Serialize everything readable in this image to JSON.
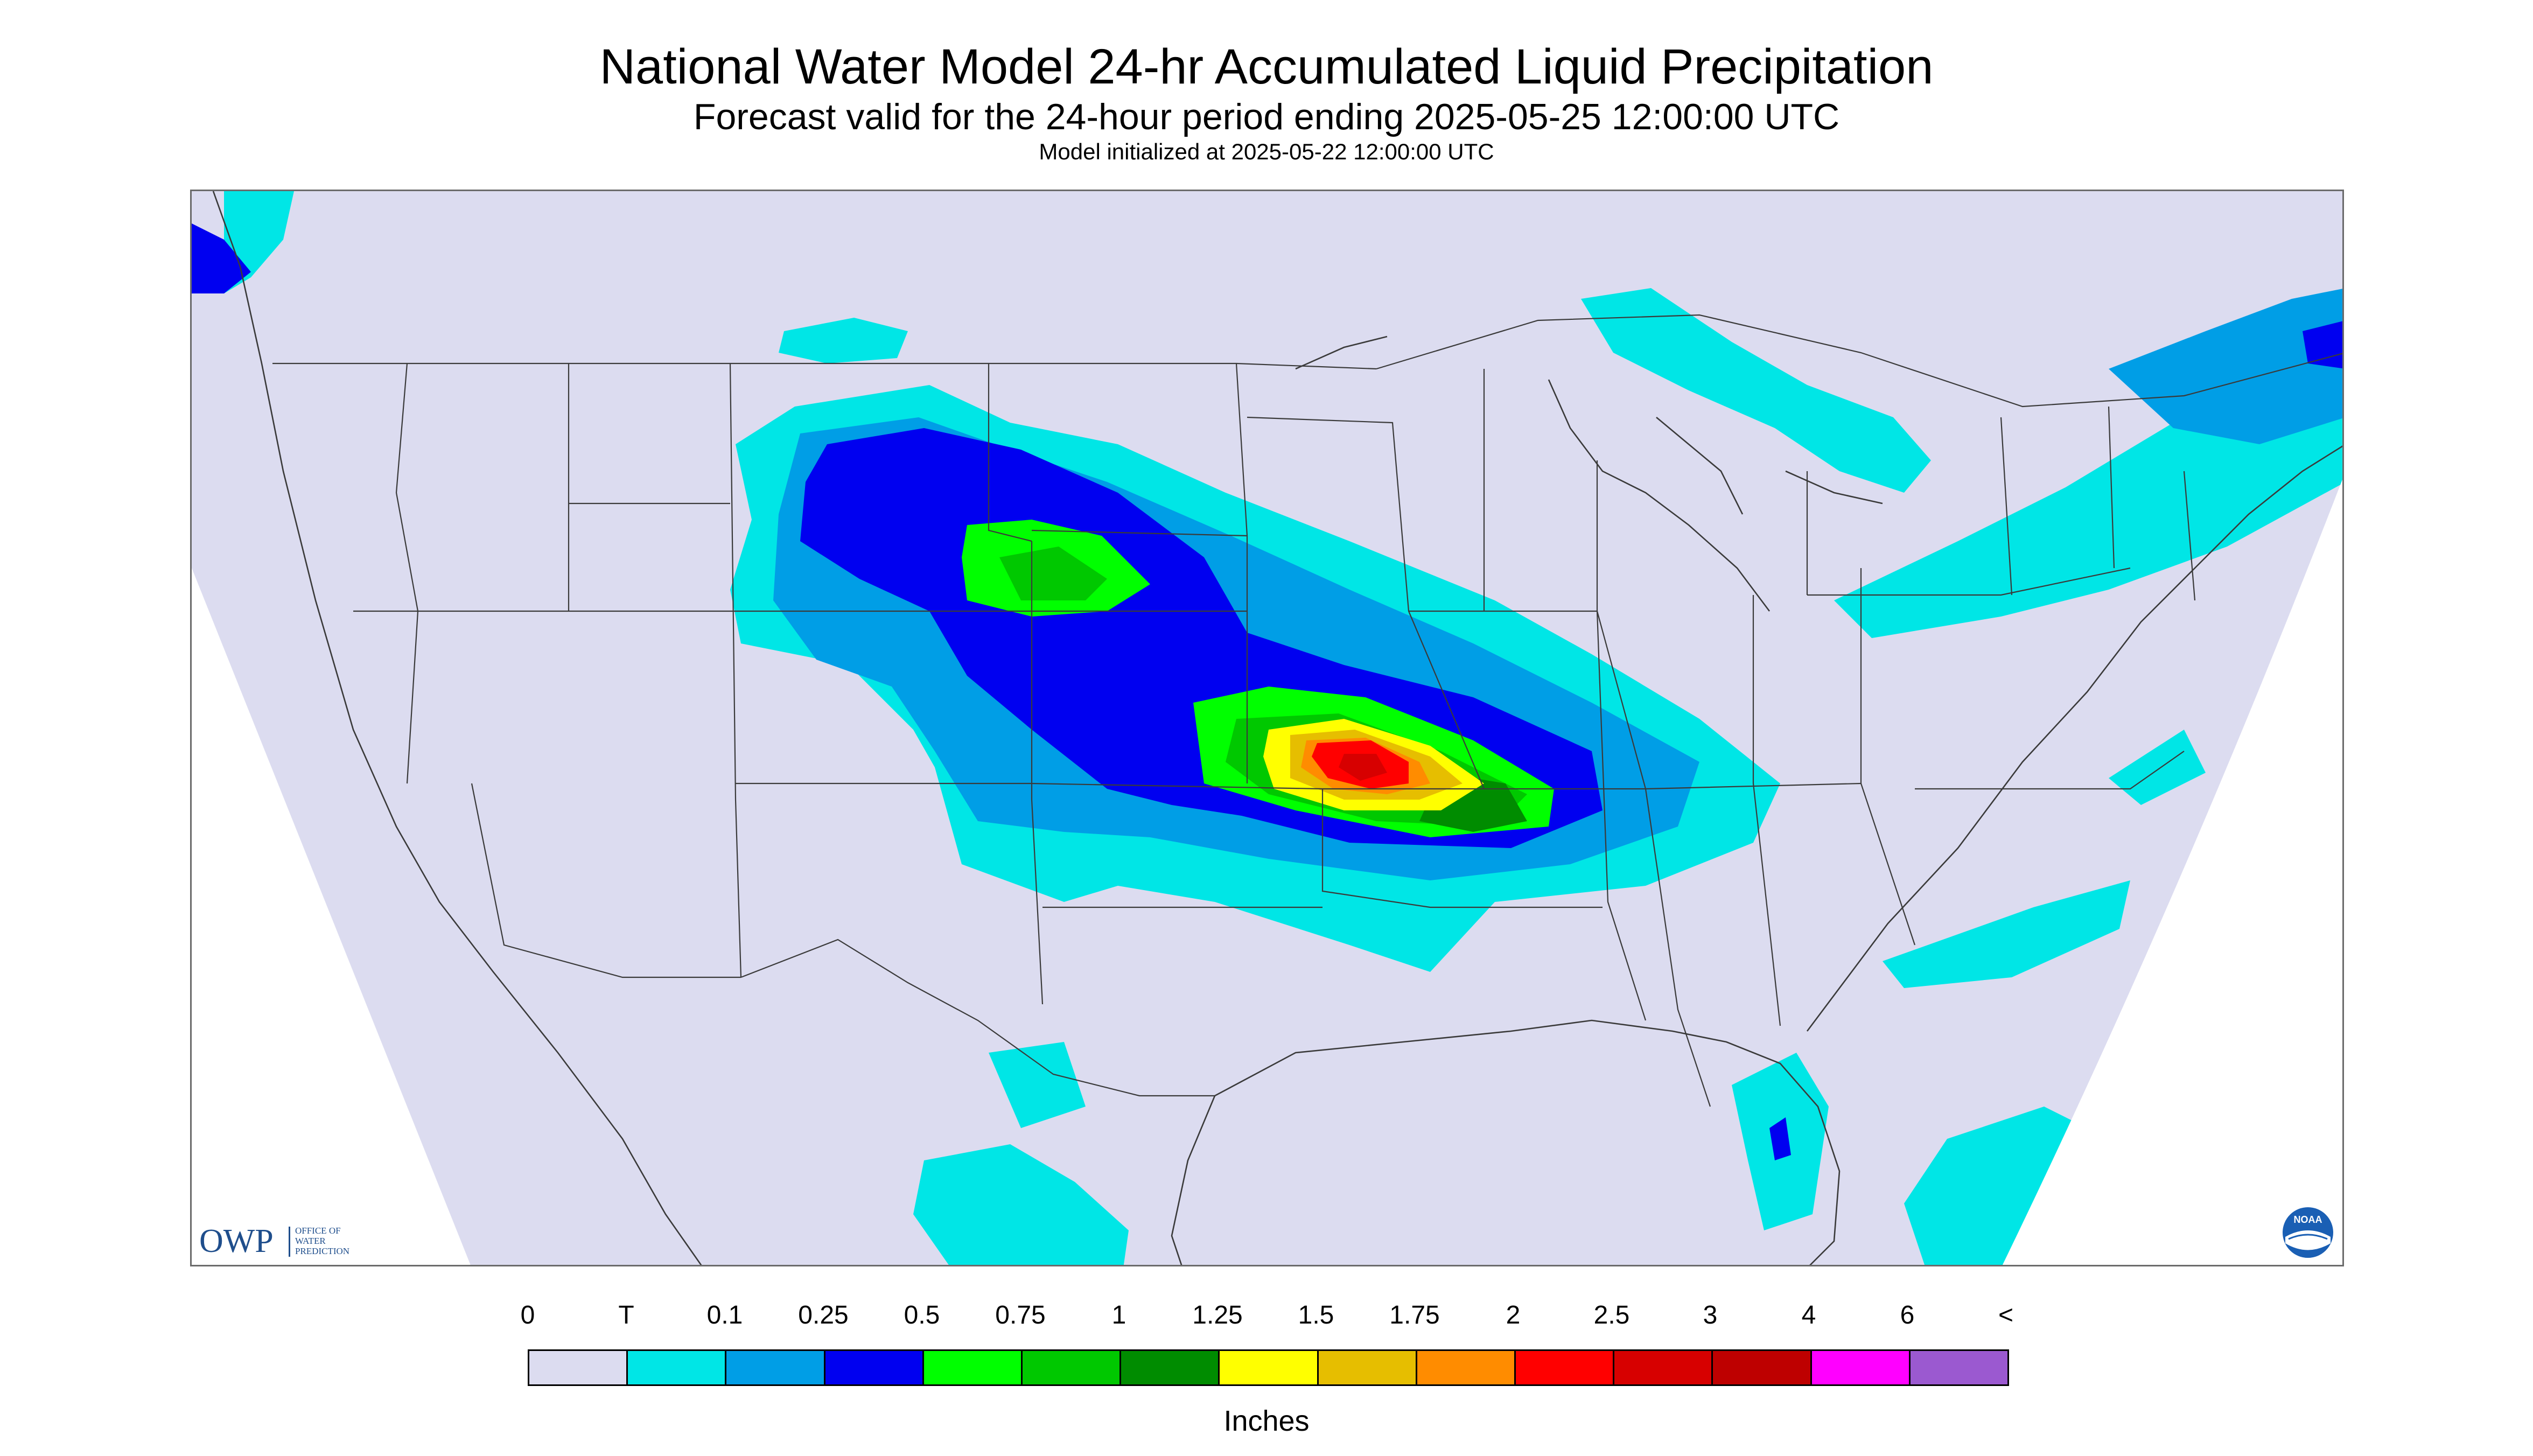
{
  "title": "National Water Model 24-hr Accumulated Liquid Precipitation",
  "subtitle": "Forecast valid for the 24-hour period ending 2025-05-25 12:00:00 UTC",
  "model_init": "Model initialized at 2025-05-22 12:00:00 UTC",
  "logos": {
    "owp_text": "OWP",
    "owp_sub": [
      "OFFICE OF",
      "WATER",
      "PREDICTION"
    ],
    "noaa_text": "NOAA"
  },
  "legend": {
    "units": "Inches",
    "tick_labels": [
      "0",
      "T",
      "0.1",
      "0.25",
      "0.5",
      "0.75",
      "1",
      "1.25",
      "1.5",
      "1.75",
      "2",
      "2.5",
      "3",
      "4",
      "6",
      "<"
    ],
    "colors": [
      "#dcdcf0",
      "#00e6e6",
      "#009ee6",
      "#0000f0",
      "#00ff00",
      "#00c800",
      "#008c00",
      "#ffff00",
      "#e6be00",
      "#ff8c00",
      "#ff0000",
      "#d70000",
      "#be0000",
      "#ff00ff",
      "#9b59d0"
    ]
  },
  "map": {
    "background_color": "#dcdcf0",
    "outside_domain_color": "#ffffff",
    "border_color": "#3a3a3a"
  }
}
